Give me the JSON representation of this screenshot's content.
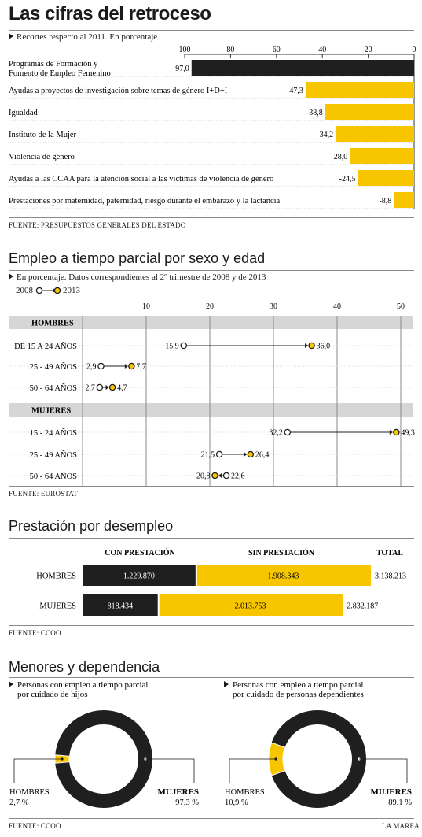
{
  "header": {
    "title": "Las cifras del retroceso"
  },
  "colors": {
    "yellow": "#f7c600",
    "black": "#1f1f1f",
    "band": "#d6d6d6",
    "grid": "#8a8a8a"
  },
  "section1": {
    "subtitle": "Recortes respecto al 2011. En porcentaje",
    "source": "FUENTE: PRESUPUESTOS GENERALES DEL ESTADO"
  },
  "section2": {
    "title": "Empleo a tiempo parcial por sexo y edad",
    "subtitle": "En porcentaje. Datos correspondientes al 2º trimestre de 2008 y de 2013",
    "legend_2008": "2008",
    "legend_2013": "2013",
    "source": "FUENTE: EUROSTAT"
  },
  "section3": {
    "title": "Prestación por desempleo",
    "source": "FUENTE: CCOO"
  },
  "section4": {
    "title": "Menores y dependencia",
    "source": "FUENTE: CCOO",
    "credit": "LA MAREA"
  },
  "chart_data": [
    {
      "type": "bar",
      "orientation": "horizontal",
      "categories": [
        "Programas de Formación y Fomento de Empleo Femenino",
        "Ayudas a proyectos de investigación sobre temas de género I+D+I",
        "Igualdad",
        "Instituto de la Mujer",
        "Violencia de género",
        "Ayudas a las CCAA para la atención social a las víctimas de violencia de género",
        "Prestaciones por maternidad, paternidad, riesgo durante el embarazo y la lactancia"
      ],
      "labels": [
        [
          "Programas de Formación y",
          "Fomento de Empleo Femenino"
        ],
        [
          "Ayudas a proyectos de investigación sobre temas de género I+D+I"
        ],
        [
          "Igualdad"
        ],
        [
          "Instituto de la Mujer"
        ],
        [
          "Violencia de género"
        ],
        [
          "Ayudas a las CCAA para la atención social a las víctimas de violencia de género"
        ],
        [
          "Prestaciones por maternidad, paternidad, riesgo durante el embarazo y la lactancia"
        ]
      ],
      "values": [
        -97.0,
        -47.3,
        -38.8,
        -34.2,
        -28.0,
        -24.5,
        -8.8
      ],
      "value_labels": [
        "-97,0",
        "-47,3",
        "-38,8",
        "-34,2",
        "-28,0",
        "-24,5",
        "-8,8"
      ],
      "highlight": [
        true,
        false,
        false,
        false,
        false,
        false,
        false
      ],
      "xlim": [
        100,
        0
      ],
      "xticks": [
        "100",
        "80",
        "60",
        "40",
        "20",
        "0"
      ]
    },
    {
      "type": "scatter",
      "variant": "dumbbell",
      "xlim": [
        0,
        52
      ],
      "xticks": [
        0,
        10,
        20,
        30,
        40,
        50
      ],
      "xtick_labels": [
        "0",
        "10",
        "20",
        "30",
        "40",
        "50"
      ],
      "groups": [
        {
          "name": "HOMBRES",
          "rows": [
            {
              "label": "DE 15 A 24 AÑOS",
              "v2008": 15.9,
              "v2013": 36.0,
              "l2008": "15,9",
              "l2013": "36,0"
            },
            {
              "label": "25 - 49 AÑOS",
              "v2008": 2.9,
              "v2013": 7.7,
              "l2008": "2,9",
              "l2013": "7,7"
            },
            {
              "label": "50 - 64 AÑOS",
              "v2008": 2.7,
              "v2013": 4.7,
              "l2008": "2,7",
              "l2013": "4,7"
            }
          ]
        },
        {
          "name": "MUJERES",
          "rows": [
            {
              "label": "15 - 24 AÑOS",
              "v2008": 32.2,
              "v2013": 49.3,
              "l2008": "32,2",
              "l2013": "49,3"
            },
            {
              "label": "25 - 49 AÑOS",
              "v2008": 21.5,
              "v2013": 26.4,
              "l2008": "21,5",
              "l2013": "26,4"
            },
            {
              "label": "50 - 64 AÑOS",
              "v2008": 22.6,
              "v2013": 20.8,
              "l2008": "22,6",
              "l2013": "20,8"
            }
          ]
        }
      ]
    },
    {
      "type": "bar",
      "orientation": "horizontal",
      "stacked": true,
      "headers": {
        "con": "CON PRESTACIÓN",
        "sin": "SIN PRESTACIÓN",
        "total": "TOTAL"
      },
      "categories": [
        "HOMBRES",
        "MUJERES"
      ],
      "series": [
        {
          "name": "CON PRESTACIÓN",
          "values": [
            1229870,
            818434
          ],
          "labels": [
            "1.229.870",
            "818.434"
          ]
        },
        {
          "name": "SIN PRESTACIÓN",
          "values": [
            1908343,
            2013753
          ],
          "labels": [
            "1.908.343",
            "2.013.753"
          ]
        }
      ],
      "totals": [
        3138213,
        2832187
      ],
      "total_labels": [
        "3.138.213",
        "2.832.187"
      ]
    },
    {
      "type": "pie",
      "subtitle": [
        "Personas con empleo a tiempo parcial",
        "por cuidado de hijos"
      ],
      "slices": [
        {
          "name": "HOMBRES",
          "value": 2.7,
          "label": "2,7 %"
        },
        {
          "name": "MUJERES",
          "value": 97.3,
          "label": "97,3 %"
        }
      ]
    },
    {
      "type": "pie",
      "subtitle": [
        "Personas con empleo a tiempo parcial",
        "por cuidado de personas dependientes"
      ],
      "slices": [
        {
          "name": "HOMBRES",
          "value": 10.9,
          "label": "10,9 %"
        },
        {
          "name": "MUJERES",
          "value": 89.1,
          "label": "89,1 %"
        }
      ]
    }
  ]
}
